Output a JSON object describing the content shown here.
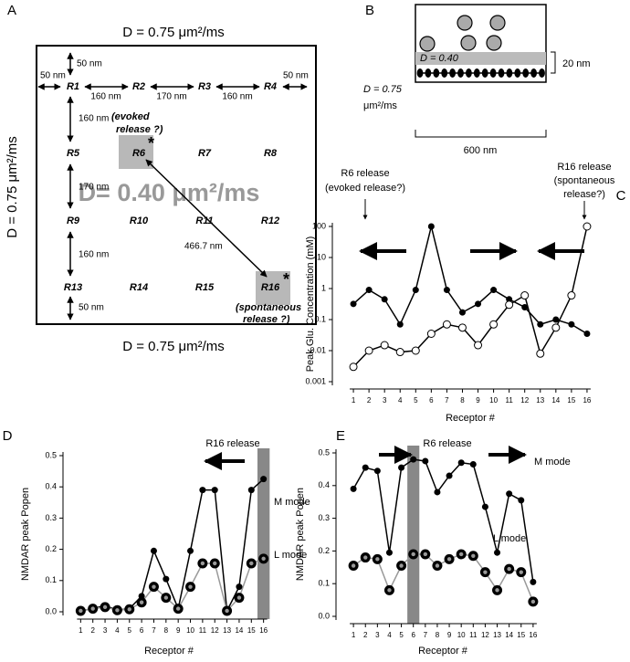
{
  "panels": {
    "A": {
      "letter": "A",
      "top": "D = 0.75 μm²/ms",
      "left": "D = 0.75 μm²/ms",
      "bottom": "D = 0.75 μm²/ms",
      "center": "D= 0.40 μm²/ms",
      "receptors": [
        "R1",
        "R2",
        "R3",
        "R4",
        "R5",
        "R6",
        "R7",
        "R8",
        "R9",
        "R10",
        "R11",
        "R12",
        "R13",
        "R14",
        "R15",
        "R16"
      ],
      "distances": [
        "50 nm",
        "50 nm",
        "160 nm",
        "170 nm",
        "160 nm",
        "50 nm",
        "160 nm",
        "170 nm",
        "160 nm",
        "50 nm",
        "466.7 nm"
      ],
      "evoked": [
        "(evoked",
        "release ?)"
      ],
      "spontaneous": [
        "(spontaneous",
        "release ?)"
      ],
      "star": "*"
    },
    "B": {
      "letter": "B",
      "cleft": "D = 0.40",
      "height": "20 nm",
      "outside": [
        "D = 0.75",
        "μm²/ms"
      ],
      "width": "600 nm"
    }
  },
  "chart_data": [
    {
      "type": "line",
      "label": "C",
      "ylabel": "Peak Glu. Concentration (mM)",
      "xlabel": "Receptor #",
      "yscale": "log",
      "ylim": [
        0.001,
        100
      ],
      "yticks": [
        100,
        10,
        1,
        0.1,
        0.01,
        0.001
      ],
      "x": [
        1,
        2,
        3,
        4,
        5,
        6,
        7,
        8,
        9,
        10,
        11,
        12,
        13,
        14,
        15,
        16
      ],
      "xlim": [
        0,
        17
      ],
      "xticks": [
        1,
        2,
        3,
        4,
        5,
        6,
        7,
        8,
        9,
        10,
        11,
        12,
        13,
        14,
        15,
        16
      ],
      "annotations": [
        "R6 release",
        "(evoked release?)",
        "R16 release",
        "(spontaneous",
        "release?)"
      ],
      "series": [
        {
          "color": "#000000",
          "marker": "filled",
          "values": [
            0.32,
            0.9,
            0.45,
            0.07,
            0.9,
            100,
            0.9,
            0.17,
            0.32,
            0.9,
            0.45,
            0.25,
            0.07,
            0.1,
            0.07,
            0.035
          ]
        },
        {
          "color": "#000000",
          "marker": "open",
          "values": [
            0.003,
            0.01,
            0.015,
            0.009,
            0.01,
            0.035,
            0.07,
            0.055,
            0.015,
            0.07,
            0.3,
            0.6,
            0.008,
            0.055,
            0.6,
            100
          ]
        }
      ]
    },
    {
      "type": "line",
      "label": "D",
      "ylabel": "NMDAR peak Popen",
      "xlabel": "Receptor #",
      "ylim": [
        0,
        0.5
      ],
      "yticks": [
        {
          "value": 0,
          "label": "0.0"
        },
        0.1,
        0.2,
        0.3,
        0.4,
        0.5
      ],
      "x": [
        1,
        2,
        3,
        4,
        5,
        6,
        7,
        8,
        9,
        10,
        11,
        12,
        13,
        14,
        15,
        16
      ],
      "xlim": [
        0,
        17
      ],
      "xticks": [
        1,
        2,
        3,
        4,
        5,
        6,
        7,
        8,
        9,
        10,
        11,
        12,
        13,
        14,
        15,
        16
      ],
      "highlight_x": 16,
      "annotations": [
        "R16 release"
      ],
      "series": [
        {
          "name": "M mode",
          "color": "#000000",
          "marker": "filled",
          "values": [
            0.003,
            0.01,
            0.02,
            0.005,
            0.01,
            0.05,
            0.195,
            0.105,
            0.01,
            0.195,
            0.39,
            0.39,
            0.003,
            0.08,
            0.39,
            0.425
          ]
        },
        {
          "name": "L mode",
          "color": "#000000",
          "line_color": "#999999",
          "marker": "ring",
          "values": [
            0.003,
            0.01,
            0.015,
            0.005,
            0.008,
            0.03,
            0.08,
            0.045,
            0.01,
            0.08,
            0.155,
            0.155,
            0.003,
            0.045,
            0.155,
            0.17
          ]
        }
      ]
    },
    {
      "type": "line",
      "label": "E",
      "ylabel": "NMDAR peak Popen",
      "xlabel": "Receptor #",
      "ylim": [
        0,
        0.5
      ],
      "yticks": [
        {
          "value": 0,
          "label": "0.0"
        },
        0.1,
        0.2,
        0.3,
        0.4,
        0.5
      ],
      "x": [
        1,
        2,
        3,
        4,
        5,
        6,
        7,
        8,
        9,
        10,
        11,
        12,
        13,
        14,
        15,
        16
      ],
      "xlim": [
        0,
        17
      ],
      "xticks": [
        1,
        2,
        3,
        4,
        5,
        6,
        7,
        8,
        9,
        10,
        11,
        12,
        13,
        14,
        15,
        16
      ],
      "highlight_x": 6,
      "annotations": [
        "R6 release"
      ],
      "series": [
        {
          "name": "M mode",
          "color": "#000000",
          "marker": "filled",
          "values": [
            0.39,
            0.455,
            0.445,
            0.195,
            0.455,
            0.48,
            0.475,
            0.38,
            0.43,
            0.47,
            0.465,
            0.335,
            0.195,
            0.375,
            0.355,
            0.105
          ]
        },
        {
          "name": "L mode",
          "color": "#000000",
          "line_color": "#999999",
          "marker": "ring",
          "values": [
            0.155,
            0.18,
            0.175,
            0.08,
            0.155,
            0.19,
            0.19,
            0.155,
            0.175,
            0.19,
            0.185,
            0.135,
            0.08,
            0.145,
            0.135,
            0.045
          ]
        }
      ]
    }
  ]
}
